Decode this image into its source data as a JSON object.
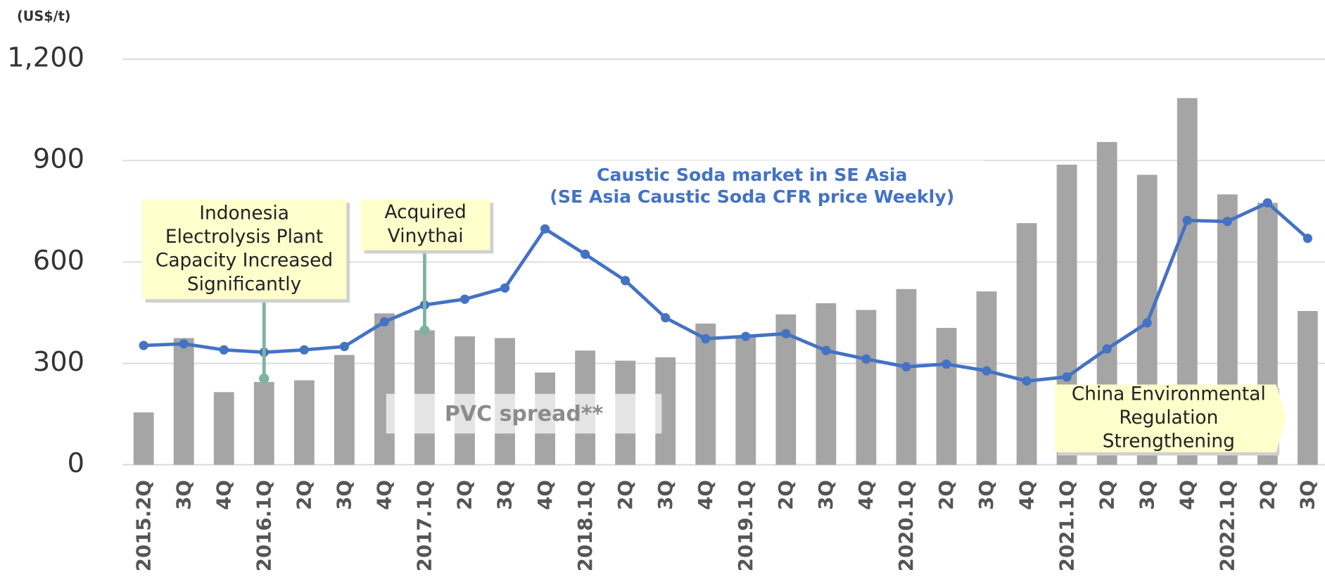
{
  "chart_data": {
    "type": "bar-line",
    "y_axis_label": "(US$/t)",
    "categories": [
      "2015.2Q",
      "3Q",
      "4Q",
      "2016.1Q",
      "2Q",
      "3Q",
      "4Q",
      "2017.1Q",
      "2Q",
      "3Q",
      "4Q",
      "2018.1Q",
      "2Q",
      "3Q",
      "4Q",
      "2019.1Q",
      "2Q",
      "3Q",
      "4Q",
      "2020.1Q",
      "2Q",
      "3Q",
      "4Q",
      "2021.1Q",
      "2Q",
      "3Q",
      "4Q",
      "2022.1Q",
      "2Q",
      "3Q"
    ],
    "ylim": [
      0,
      1200
    ],
    "yticks": [
      0,
      300,
      600,
      900,
      {
        "value": 1200,
        "label": "1,200"
      }
    ],
    "grid": true,
    "series": [
      {
        "name": "PVC spread**",
        "kind": "bar",
        "color": "#a5a5a5",
        "values": [
          155,
          375,
          215,
          245,
          250,
          325,
          448,
          398,
          380,
          375,
          273,
          338,
          308,
          318,
          418,
          380,
          445,
          478,
          458,
          520,
          405,
          513,
          715,
          888,
          955,
          858,
          1085,
          800,
          775,
          455
        ]
      },
      {
        "name": "Caustic Soda market in SE Asia",
        "note": "(SE Asia Caustic Soda CFR price Weekly)",
        "kind": "line",
        "color": "#4472c4",
        "values": [
          353,
          358,
          340,
          333,
          340,
          350,
          423,
          473,
          490,
          523,
          698,
          623,
          545,
          435,
          373,
          380,
          388,
          338,
          313,
          290,
          298,
          278,
          248,
          260,
          343,
          420,
          723,
          720,
          775,
          670
        ]
      }
    ],
    "annotations": [
      {
        "lines": [
          "Indonesia",
          "Electrolysis Plant",
          "Capacity Increased",
          "Significantly"
        ],
        "category": "2016.1Q"
      },
      {
        "lines": [
          "Acquired",
          "Vinythai"
        ],
        "category": "2017.1Q"
      },
      {
        "lines": [
          "China Environmental",
          "Regulation",
          "Strengthening"
        ],
        "category": "2021.1Q"
      }
    ]
  }
}
